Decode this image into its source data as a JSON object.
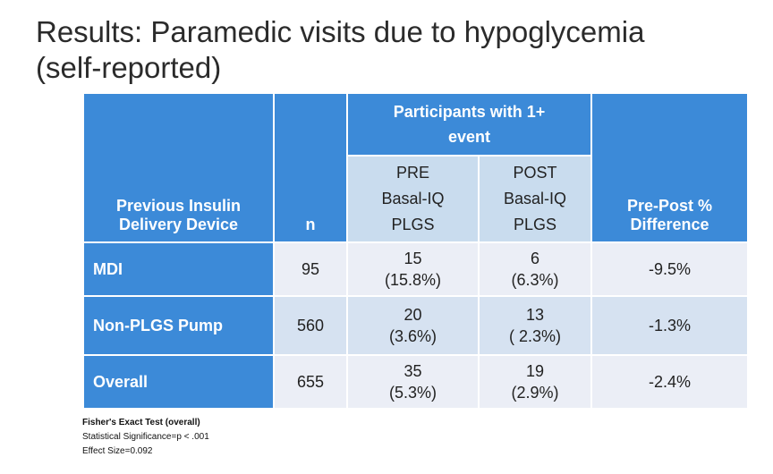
{
  "slide": {
    "title_line1": "Results: Paramedic visits due to hypoglycemia",
    "title_line2": "(self-reported)"
  },
  "table": {
    "header": {
      "device_line1": "Previous Insulin",
      "device_line2": "Delivery Device",
      "n": "n",
      "participants_line1": "Participants with 1+",
      "participants_line2": "event",
      "pre": [
        "PRE",
        "Basal-IQ",
        "PLGS"
      ],
      "post": [
        "POST",
        "Basal-IQ",
        "PLGS"
      ],
      "diff_line1": "Pre-Post %",
      "diff_line2": "Difference"
    },
    "rows": [
      {
        "device": "MDI",
        "n": "95",
        "pre_count": "15",
        "pre_pct": "(15.8%)",
        "post_count": "6",
        "post_pct": "(6.3%)",
        "diff": "-9.5%"
      },
      {
        "device": "Non-PLGS Pump",
        "n": "560",
        "pre_count": "20",
        "pre_pct": "(3.6%)",
        "post_count": "13",
        "post_pct": "( 2.3%)",
        "diff": "-1.3%"
      },
      {
        "device": "Overall",
        "n": "655",
        "pre_count": "35",
        "pre_pct": "(5.3%)",
        "post_count": "19",
        "post_pct": "(2.9%)",
        "diff": "-2.4%"
      }
    ]
  },
  "footnote": {
    "heading": "Fisher's Exact Test (overall)",
    "line1": "Statistical Significance=p < .001",
    "line2": "Effect Size=0.092"
  },
  "colors": {
    "header_blue": "#3c8ad8",
    "row_light": "#ebeef6",
    "row_mid": "#d6e2f1",
    "subheader": "#c9dcee"
  }
}
